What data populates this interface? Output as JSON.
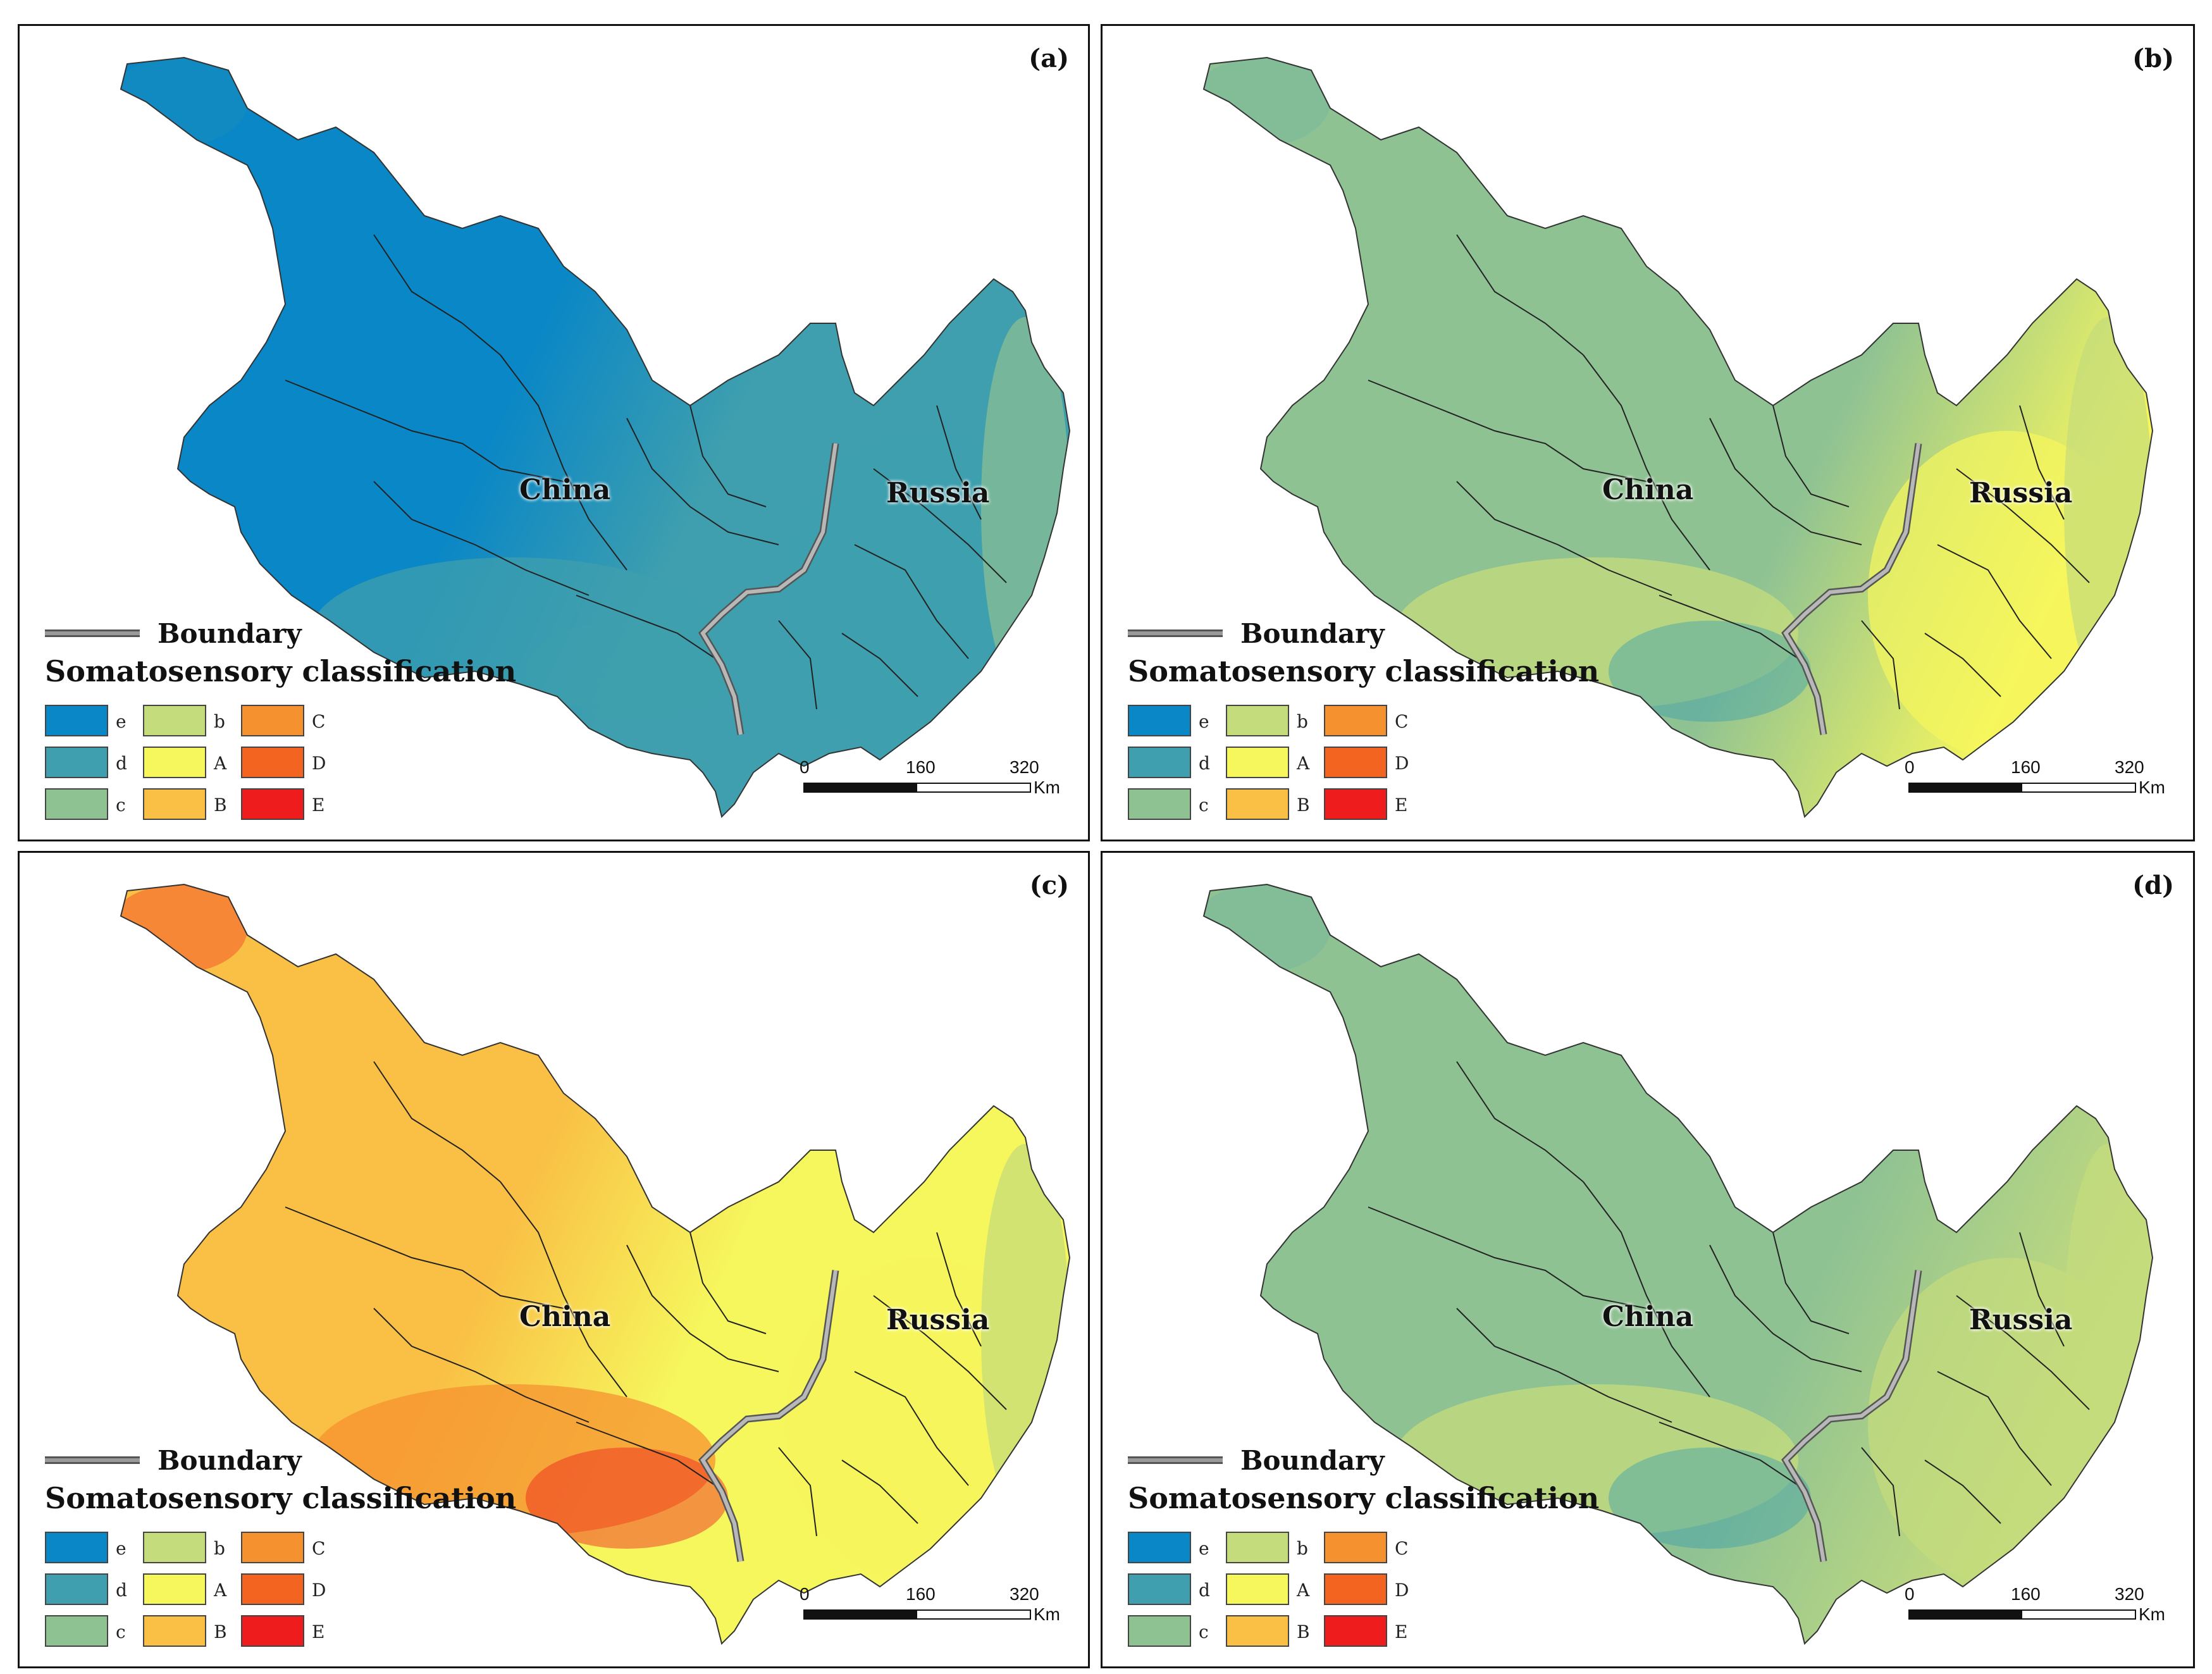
{
  "place_labels": {
    "china": "China",
    "russia": "Russia"
  },
  "legend": {
    "boundary_label": "Boundary",
    "title": "Somatosensory classification",
    "classes": [
      {
        "label": "e",
        "color": "#0a87c6"
      },
      {
        "label": "d",
        "color": "#3f9fae"
      },
      {
        "label": "c",
        "color": "#8fc293"
      },
      {
        "label": "b",
        "color": "#c5dc7c"
      },
      {
        "label": "A",
        "color": "#f6f65d"
      },
      {
        "label": "B",
        "color": "#f9c045"
      },
      {
        "label": "C",
        "color": "#f6912f"
      },
      {
        "label": "D",
        "color": "#f36421"
      },
      {
        "label": "E",
        "color": "#ee1c1c"
      }
    ]
  },
  "scale": {
    "ticks": [
      "0",
      "160",
      "320"
    ],
    "unit": "Km"
  },
  "panels": [
    {
      "id": "a",
      "label": "(a)",
      "west_color": "#0a87c6",
      "east_color": "#3f9fae",
      "south_color": "#3f9fae",
      "border_tint": "#3f9fae",
      "russia_color": "#3f9fae",
      "coast_color": "#8fc293"
    },
    {
      "id": "b",
      "label": "(b)",
      "west_color": "#8fc293",
      "east_color": "#8fc293",
      "south_color": "#c5dc7c",
      "border_tint": "#3f9fae",
      "russia_color": "#f6f65d",
      "coast_color": "#c5dc7c"
    },
    {
      "id": "c",
      "label": "(c)",
      "west_color": "#f9c045",
      "east_color": "#f6f65d",
      "south_color": "#f6912f",
      "border_tint": "#ee1c1c",
      "russia_color": "#f6f65d",
      "coast_color": "#c5dc7c"
    },
    {
      "id": "d",
      "label": "(d)",
      "west_color": "#8fc293",
      "east_color": "#8fc293",
      "south_color": "#c5dc7c",
      "border_tint": "#3f9fae",
      "russia_color": "#c5dc7c",
      "coast_color": "#c5dc7c"
    }
  ]
}
